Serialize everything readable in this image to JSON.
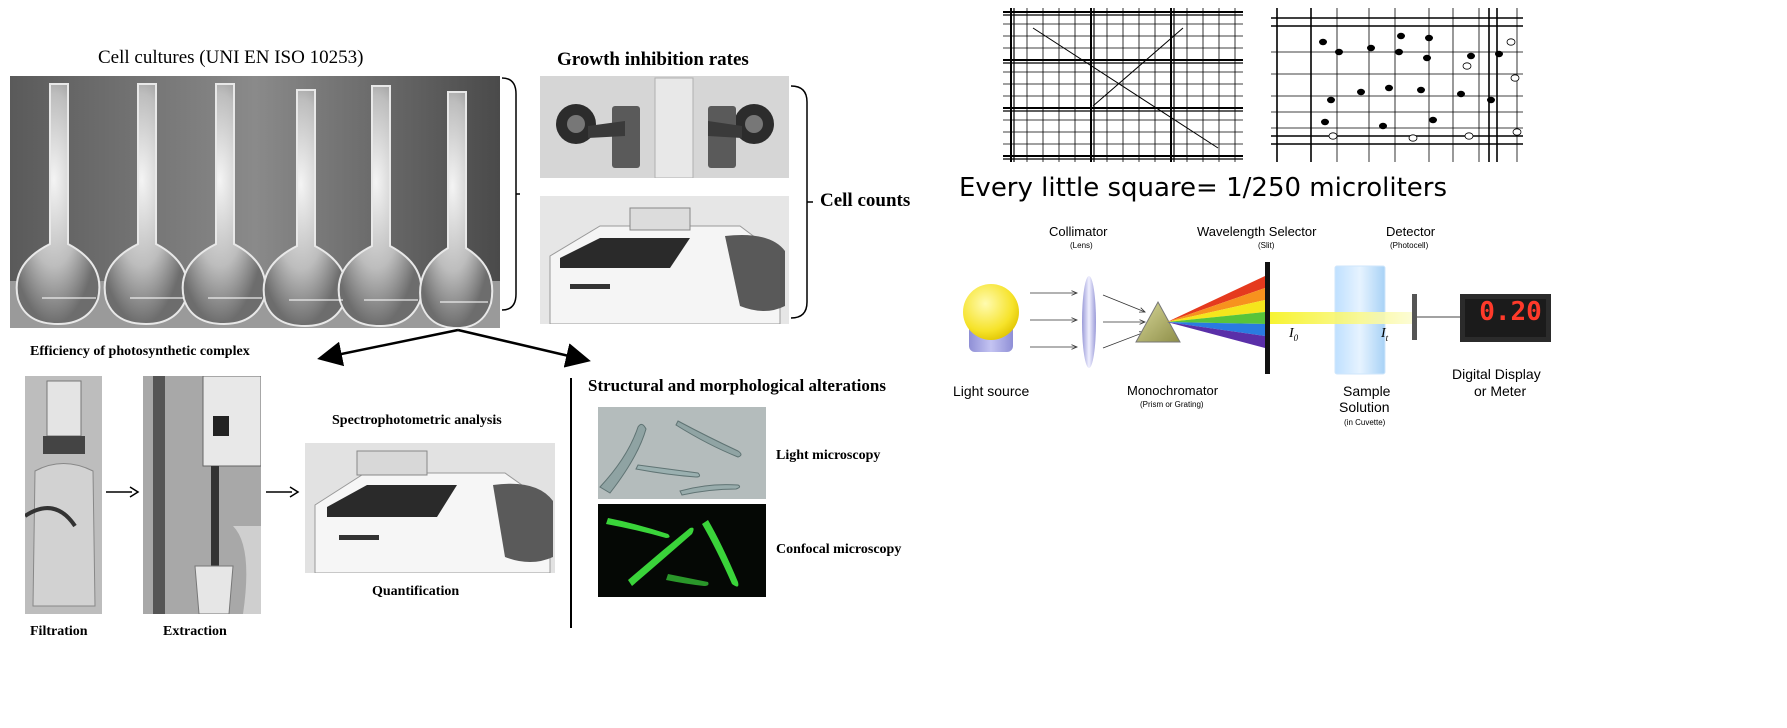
{
  "left": {
    "cell_cultures_title": "Cell cultures (UNI EN ISO 10253)",
    "growth_title": "Growth inhibition rates",
    "cell_counts": "Cell counts",
    "efficiency_title": "Efficiency of photosynthetic complex",
    "filtration": "Filtration",
    "extraction": "Extraction",
    "spectro_title": "Spectrophotometric analysis",
    "quantification": "Quantification",
    "structural_title": "Structural and morphological alterations",
    "light_microscopy": "Light microscopy",
    "confocal_microscopy": "Confocal microscopy"
  },
  "right": {
    "hemocytometer_caption": "Every little square= 1/250 microliters",
    "spectro": {
      "collimator": "Collimator",
      "collimator_sub": "(Lens)",
      "wavelength": "Wavelength Selector",
      "wavelength_sub": "(Slit)",
      "detector": "Detector",
      "detector_sub": "(Photocell)",
      "light_source": "Light source",
      "monochromator": "Monochromator",
      "monochromator_sub": "(Prism or Grating)",
      "sample1": "Sample",
      "sample2": "Solution",
      "sample_sub": "(in Cuvette)",
      "i0": "I",
      "i0_sub": "0",
      "it": "I",
      "it_sub": "t",
      "display_value": "0.20",
      "digital1": "Digital Display",
      "digital2": "or Meter"
    }
  }
}
